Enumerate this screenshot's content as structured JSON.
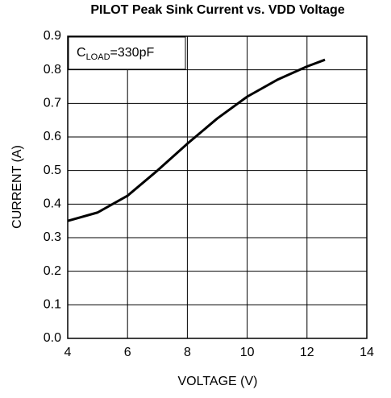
{
  "chart_data": {
    "type": "line",
    "title": "PILOT Peak Sink Current vs. VDD Voltage",
    "xlabel": "VOLTAGE (V)",
    "ylabel": "CURRENT (A)",
    "annotation": {
      "main": "C",
      "sub": "LOAD",
      "rest": "=330pF"
    },
    "x": [
      4,
      5,
      6,
      7,
      8,
      9,
      10,
      11,
      12,
      12.6
    ],
    "series": [
      {
        "color": "#000000",
        "values": [
          0.35,
          0.375,
          0.425,
          0.5,
          0.58,
          0.655,
          0.72,
          0.77,
          0.81,
          0.83
        ]
      }
    ],
    "xlim": [
      4,
      14
    ],
    "xticks": [
      4,
      6,
      8,
      10,
      12,
      14
    ],
    "ylim": [
      0,
      0.9
    ],
    "yticks": [
      {
        "value": 0,
        "label": "0.0"
      },
      0.1,
      0.2,
      0.3,
      0.4,
      0.5,
      0.6,
      0.7,
      0.8,
      0.9
    ],
    "grid": true
  }
}
